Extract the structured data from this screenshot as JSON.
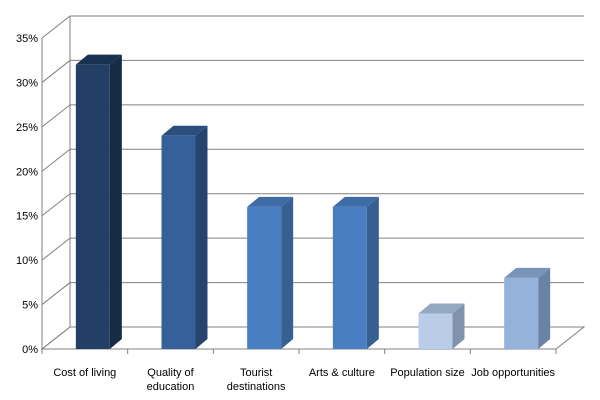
{
  "chart_data": {
    "type": "bar",
    "categories": [
      "Cost of living",
      "Quality of education",
      "Tourist destinations",
      "Arts & culture",
      "Population size",
      "Job opportunities"
    ],
    "category_label_lines": [
      [
        "Cost of living"
      ],
      [
        "Quality of",
        "education"
      ],
      [
        "Tourist",
        "destinations"
      ],
      [
        "Arts & culture"
      ],
      [
        "Population size"
      ],
      [
        "Job opportunities"
      ]
    ],
    "values": [
      32,
      24,
      16,
      16,
      4,
      8
    ],
    "ylim": [
      0,
      35
    ],
    "yticks": [
      0,
      5,
      10,
      15,
      20,
      25,
      30,
      35
    ],
    "ytick_labels": [
      "0%",
      "5%",
      "10%",
      "15%",
      "20%",
      "25%",
      "30%",
      "35%"
    ],
    "grid": true,
    "bar_colors": [
      {
        "front": "#233F66",
        "side": "#172B47",
        "top": "#1A3050"
      },
      {
        "front": "#35609A",
        "side": "#24446D",
        "top": "#2A4E7D"
      },
      {
        "front": "#4A7EC2",
        "side": "#365F92",
        "top": "#3F6BA7"
      },
      {
        "front": "#4A7EC2",
        "side": "#365F92",
        "top": "#3F6BA7"
      },
      {
        "front": "#B9CDE8",
        "side": "#7F93AD",
        "top": "#93A8C2"
      },
      {
        "front": "#94B2DA",
        "side": "#6A82A5",
        "top": "#7A93B8"
      }
    ],
    "gridline_color": "#808080",
    "axis_color": "#808080"
  }
}
